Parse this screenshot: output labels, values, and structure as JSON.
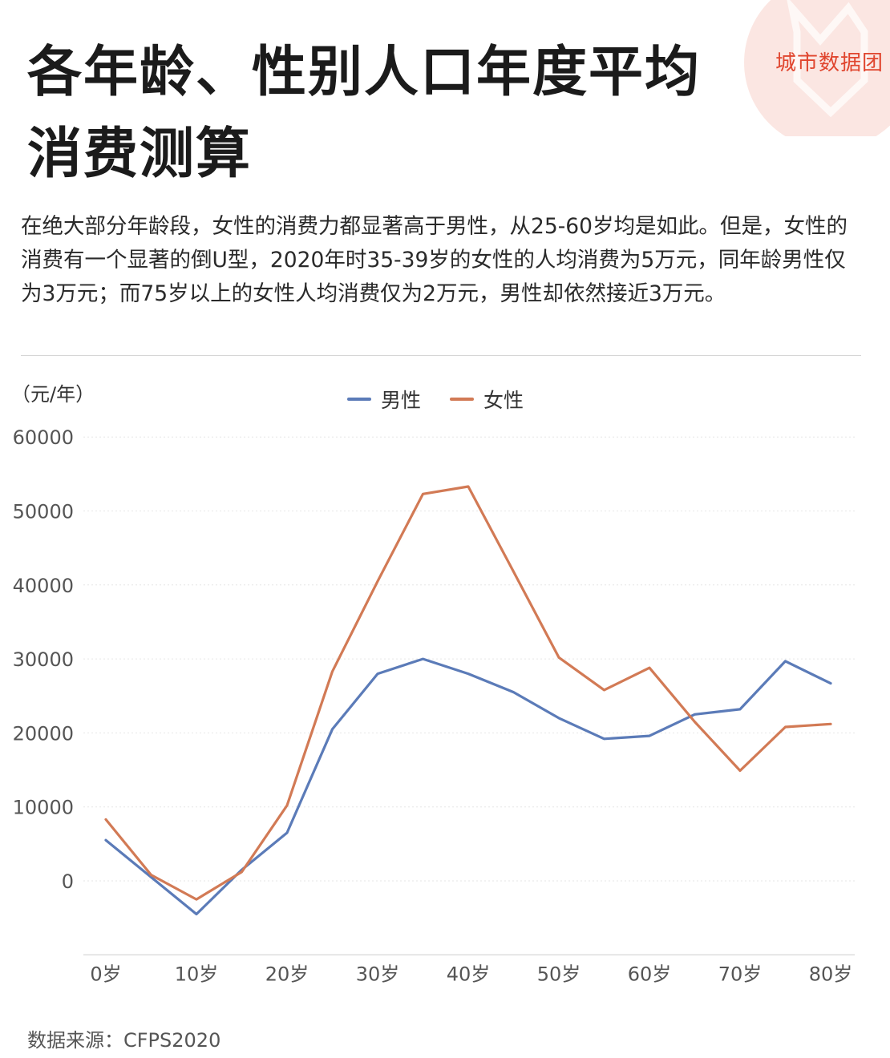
{
  "header": {
    "title": "各年龄、性别人口年度平均消费测算",
    "description": "在绝大部分年龄段，女性的消费力都显著高于男性，从25-60岁均是如此。但是，女性的消费有一个显著的倒U型，2020年时35-39岁的女性的人均消费为5万元，同年龄男性仅为3万元；而75岁以上的女性人均消费仅为2万元，男性却依然接近3万元。",
    "logo_text": "城市数据团"
  },
  "footer": {
    "source": "数据来源：CFPS2020"
  },
  "colors": {
    "male": "#5b7bb8",
    "female": "#d27a55",
    "logo": "#e0452e"
  },
  "chart_data": {
    "type": "line",
    "title": "",
    "ylabel": "（元/年）",
    "xlabel": "",
    "x": [
      0,
      5,
      10,
      15,
      20,
      25,
      30,
      35,
      40,
      45,
      50,
      55,
      60,
      65,
      70,
      75,
      80
    ],
    "x_tick_values": [
      0,
      10,
      20,
      30,
      40,
      50,
      60,
      70,
      80
    ],
    "x_tick_labels": [
      "0岁",
      "10岁",
      "20岁",
      "30岁",
      "40岁",
      "50岁",
      "60岁",
      "70岁",
      "80岁"
    ],
    "ylim": [
      -10000,
      60000
    ],
    "y_ticks": [
      0,
      10000,
      20000,
      30000,
      40000,
      50000,
      60000
    ],
    "grid": true,
    "legend_position": "top-center",
    "series": [
      {
        "name": "男性",
        "color": "#5b7bb8",
        "values": [
          5500,
          500,
          -4500,
          1500,
          6500,
          20500,
          28000,
          30000,
          28000,
          25500,
          22000,
          19200,
          19600,
          22500,
          23200,
          29700,
          26700
        ]
      },
      {
        "name": "女性",
        "color": "#d27a55",
        "values": [
          8300,
          800,
          -2500,
          1200,
          10200,
          28300,
          40500,
          52300,
          53300,
          41800,
          30200,
          25800,
          28800,
          21500,
          14900,
          20800,
          21200
        ]
      }
    ]
  }
}
